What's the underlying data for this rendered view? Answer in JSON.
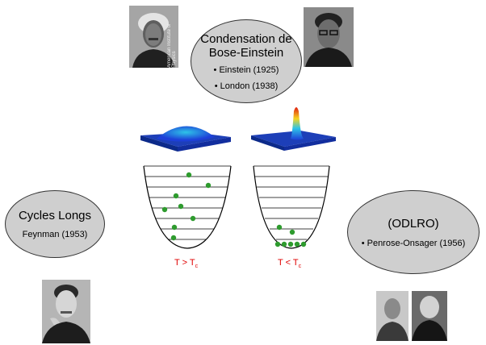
{
  "bec": {
    "title_line1": "Condensation de",
    "title_line2": "Bose-Einstein",
    "item1": "• Einstein (1925)",
    "item2": "• London (1938)"
  },
  "cycles": {
    "title": "Cycles Longs",
    "item": "Feynman (1953)"
  },
  "odlro": {
    "title": "(ODLRO)",
    "item": "• Penrose-Onsager (1956)"
  },
  "photos": {
    "einstein_credit": "American Institute of Physics"
  },
  "captions": {
    "left_main": "T > T",
    "left_sub": "c",
    "right_main": "T < T",
    "right_sub": "c"
  },
  "colors": {
    "ellipse_fill": "#cfcfcf",
    "level_dot": "#2e9b2e",
    "caption": "#e00000"
  }
}
